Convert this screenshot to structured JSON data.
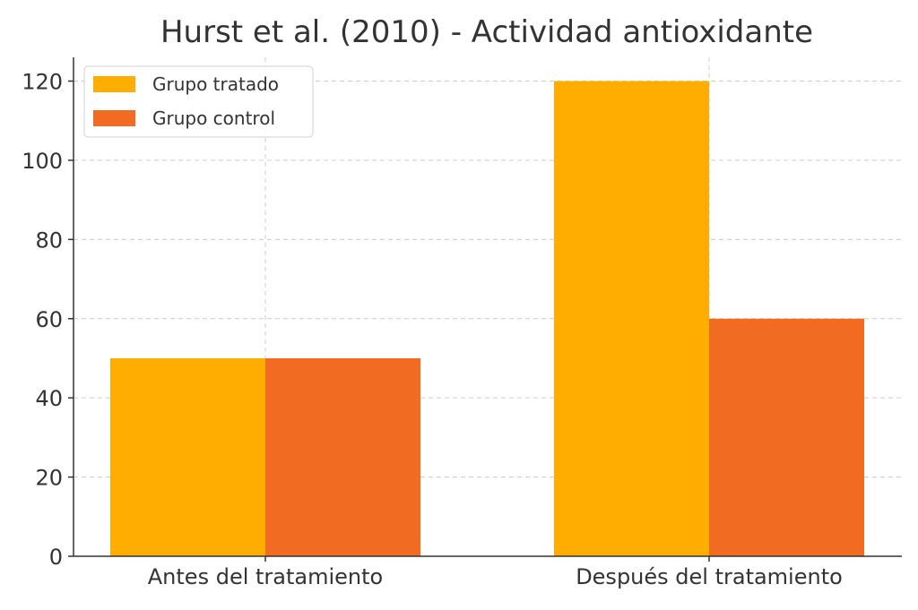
{
  "chart_data": {
    "type": "bar",
    "title": "Hurst et al. (2010) - Actividad antioxidante",
    "xlabel": "",
    "ylabel": "",
    "categories": [
      "Antes del tratamiento",
      "Después del tratamiento"
    ],
    "series": [
      {
        "name": "Grupo tratado",
        "values": [
          50,
          120
        ],
        "color": "#FFAE00"
      },
      {
        "name": "Grupo control",
        "values": [
          50,
          60
        ],
        "color": "#F26B22"
      }
    ],
    "ylim": [
      0,
      126
    ],
    "yticks": [
      0,
      20,
      40,
      60,
      80,
      100,
      120
    ],
    "grid": true,
    "legend_position": "top-left"
  }
}
